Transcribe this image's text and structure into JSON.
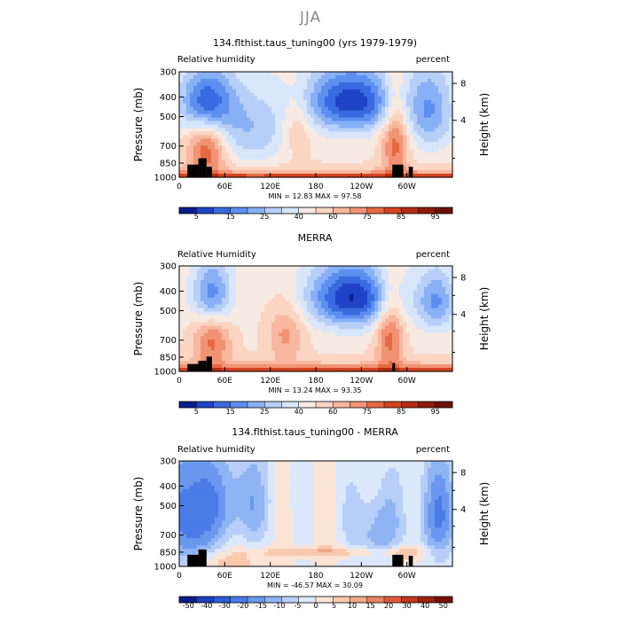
{
  "page_title": "JJA",
  "chart_data": [
    {
      "type": "heatmap",
      "title": "134.flthist.taus_tuning00 (yrs 1979-1979)",
      "left_label": "Relative humidity",
      "right_label": "percent",
      "ylabel": "Pressure (mb)",
      "y2label": "Height (km)",
      "y_ticks": [
        "300",
        "400",
        "500",
        "700",
        "850",
        "1000"
      ],
      "y2_ticks": [
        "8",
        "4"
      ],
      "x_ticks": [
        "0",
        "60E",
        "120E",
        "180",
        "120W",
        "60W"
      ],
      "min_max_text": "MIN =   12.83   MAX =   97.58",
      "colorbar_ticks": [
        "5",
        "15",
        "25",
        "40",
        "60",
        "75",
        "85",
        "95"
      ],
      "colorbar_colors": [
        "#0a1d8c",
        "#1f43c7",
        "#3a6ae0",
        "#5d8ff0",
        "#88b0f5",
        "#b7cff8",
        "#d8e6fb",
        "#f6eae2",
        "#fbd5c2",
        "#f8b89f",
        "#f19373",
        "#e56a44",
        "#d2431f",
        "#b42a12",
        "#8e1a0b",
        "#6b0f08"
      ],
      "range": [
        0,
        100
      ]
    },
    {
      "type": "heatmap",
      "title": "MERRA",
      "left_label": "Relative Humidity",
      "right_label": "percent",
      "ylabel": "Pressure (mb)",
      "y2label": "Height (km)",
      "y_ticks": [
        "300",
        "400",
        "500",
        "700",
        "850",
        "1000"
      ],
      "y2_ticks": [
        "8",
        "4"
      ],
      "x_ticks": [
        "0",
        "60E",
        "120E",
        "180",
        "120W",
        "60W"
      ],
      "min_max_text": "MIN =   13.24   MAX =   93.35",
      "colorbar_ticks": [
        "5",
        "15",
        "25",
        "40",
        "60",
        "75",
        "85",
        "95"
      ],
      "colorbar_colors": [
        "#0a1d8c",
        "#1f43c7",
        "#3a6ae0",
        "#5d8ff0",
        "#88b0f5",
        "#b7cff8",
        "#d8e6fb",
        "#f6eae2",
        "#fbd5c2",
        "#f8b89f",
        "#f19373",
        "#e56a44",
        "#d2431f",
        "#b42a12",
        "#8e1a0b",
        "#6b0f08"
      ],
      "range": [
        0,
        100
      ]
    },
    {
      "type": "heatmap",
      "title": "134.flthist.taus_tuning00 - MERRA",
      "left_label": "Relative humidity",
      "right_label": "percent",
      "ylabel": "Pressure (mb)",
      "y2label": "Height (km)",
      "y_ticks": [
        "300",
        "400",
        "500",
        "700",
        "850",
        "1000"
      ],
      "y2_ticks": [
        "8",
        "4"
      ],
      "x_ticks": [
        "0",
        "60E",
        "120E",
        "180",
        "120W",
        "60W"
      ],
      "min_max_text": "MIN =  -46.57   MAX =   30.09",
      "colorbar_ticks": [
        "-50",
        "-40",
        "-30",
        "-20",
        "-15",
        "-10",
        "-5",
        "0",
        "5",
        "10",
        "15",
        "20",
        "30",
        "40",
        "50"
      ],
      "colorbar_colors": [
        "#0a1d8c",
        "#1f3fbf",
        "#2f5bd8",
        "#4a7be6",
        "#6a98ee",
        "#8fb4f3",
        "#b7cff8",
        "#dce8fb",
        "#fbe4d6",
        "#f8c9ad",
        "#f3a686",
        "#ea8462",
        "#dc5c39",
        "#c3391c",
        "#9d2210",
        "#741009"
      ],
      "range": [
        -55,
        55
      ]
    }
  ]
}
